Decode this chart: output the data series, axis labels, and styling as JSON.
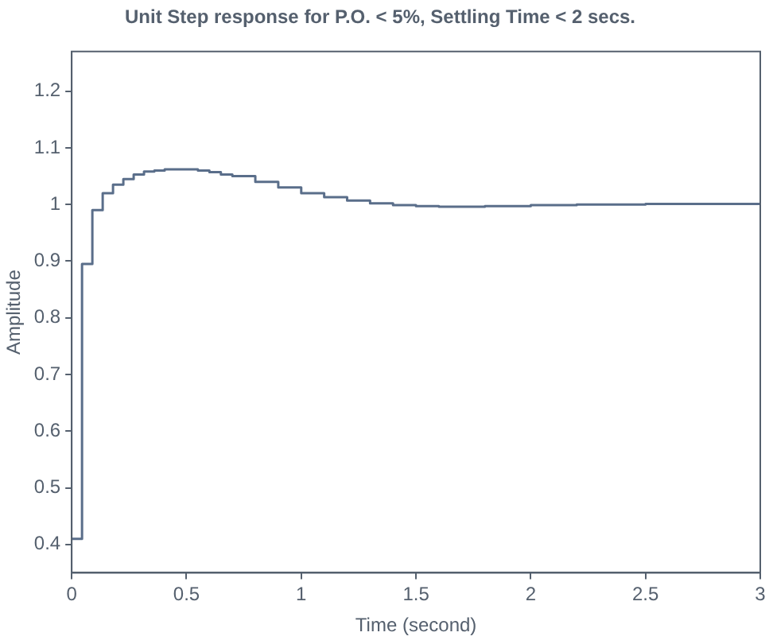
{
  "chart_data": {
    "type": "step",
    "title": "Unit Step response for P.O. < 5%, Settling Time < 2 secs.",
    "xlabel": "Time (second)",
    "ylabel": "Amplitude",
    "x": [
      0,
      0.045,
      0.09,
      0.135,
      0.18,
      0.225,
      0.27,
      0.315,
      0.36,
      0.405,
      0.45,
      0.5,
      0.55,
      0.6,
      0.65,
      0.7,
      0.8,
      0.9,
      1.0,
      1.1,
      1.2,
      1.3,
      1.4,
      1.5,
      1.6,
      1.8,
      2.0,
      2.2,
      2.5,
      3.0
    ],
    "series": [
      {
        "color": "#5a6e8a",
        "values": [
          0.41,
          0.895,
          0.99,
          1.02,
          1.035,
          1.045,
          1.053,
          1.058,
          1.06,
          1.062,
          1.062,
          1.062,
          1.06,
          1.057,
          1.053,
          1.05,
          1.04,
          1.03,
          1.02,
          1.013,
          1.007,
          1.002,
          0.999,
          0.997,
          0.996,
          0.997,
          0.999,
          1.0,
          1.001,
          1.001
        ]
      }
    ],
    "xlim": [
      0,
      3
    ],
    "xticks": [
      0,
      0.5,
      1,
      1.5,
      2,
      2.5,
      3
    ],
    "ylim": [
      0.35,
      1.27
    ],
    "yticks": [
      0.4,
      0.5,
      0.6,
      0.7,
      0.8,
      0.9,
      1,
      1.1,
      1.2
    ],
    "grid": false,
    "legend": false,
    "marker": "none",
    "line_style": "solid"
  }
}
